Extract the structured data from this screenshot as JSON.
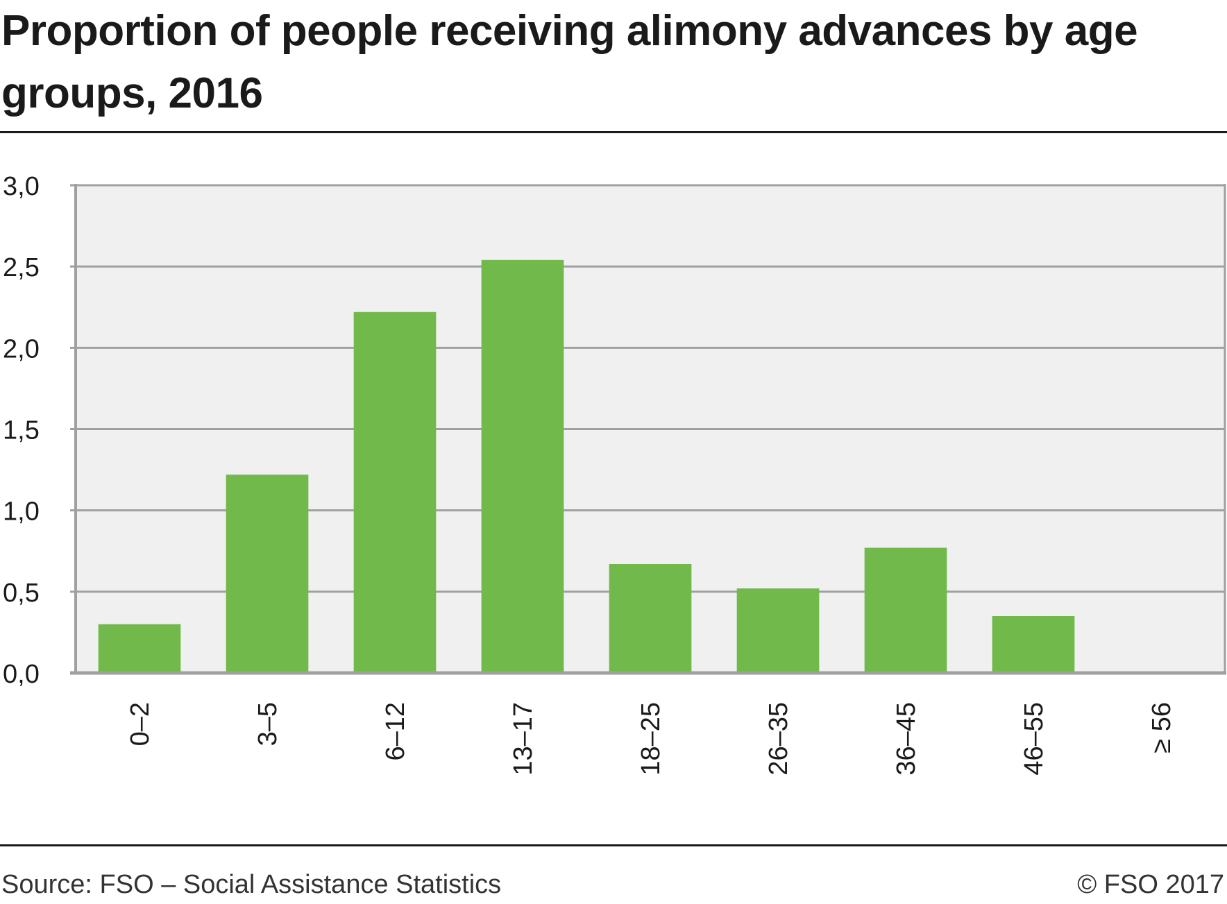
{
  "title": "Proportion of people receiving alimony advances by age groups, 2016",
  "colors": {
    "bar": "#72b94b",
    "plot_background": "#f0f0f0",
    "grid": "#a0a0a0",
    "text": "#1a1a1a"
  },
  "footer": {
    "source": "Source: FSO – Social Assistance Statistics",
    "copyright": "© FSO 2017"
  },
  "chart_data": {
    "type": "bar",
    "title": "Proportion of people receiving alimony advances by age groups, 2016",
    "xlabel": "",
    "ylabel": "",
    "categories": [
      "0–2",
      "3–5",
      "6–12",
      "13–17",
      "18–25",
      "26–35",
      "36–45",
      "46–55",
      "≥ 56"
    ],
    "values": [
      0.3,
      1.22,
      2.22,
      2.54,
      0.67,
      0.52,
      0.77,
      0.35,
      0.01
    ],
    "ylim": [
      0,
      3.0
    ],
    "yticks": [
      0,
      0.5,
      1.0,
      1.5,
      2.0,
      2.5,
      3.0
    ],
    "ytick_labels": [
      "0,0",
      "0,5",
      "1,0",
      "1,5",
      "2,0",
      "2,5",
      "3,0"
    ],
    "grid": true,
    "legend": "none",
    "xtick_rotation": "vertical"
  }
}
